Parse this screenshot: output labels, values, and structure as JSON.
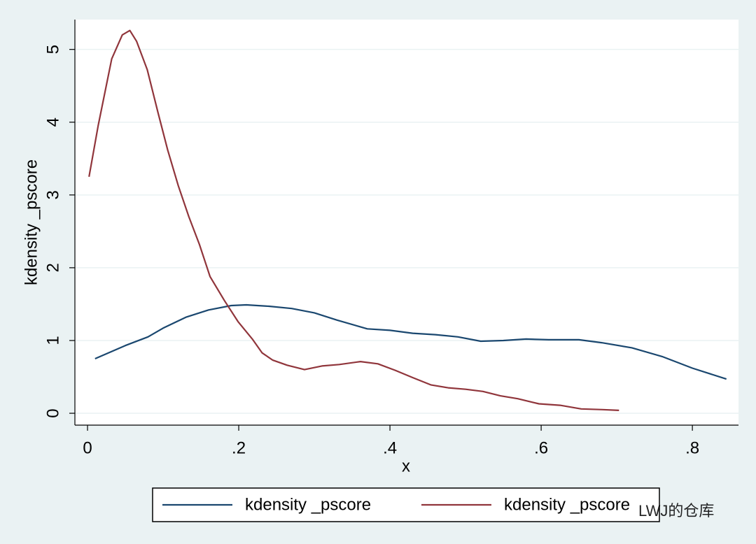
{
  "chart_data": {
    "type": "line",
    "xlabel": "x",
    "ylabel": "kdensity _pscore",
    "xlim": [
      -0.0167,
      0.861
    ],
    "ylim": [
      -0.163,
      5.41
    ],
    "xticks": [
      0,
      {
        "value": 0.2,
        "label": ".2"
      },
      {
        "value": 0.4,
        "label": ".4"
      },
      {
        "value": 0.6,
        "label": ".6"
      },
      {
        "value": 0.8,
        "label": ".8"
      }
    ],
    "yticks": [
      0,
      1,
      2,
      3,
      4,
      5
    ],
    "grid": true,
    "legend": "bottom",
    "watermark": "LWJ的仓库",
    "series": [
      {
        "name": "kdensity _pscore",
        "color": "#1a476f",
        "x": [
          0.01,
          0.05,
          0.08,
          0.1,
          0.13,
          0.16,
          0.19,
          0.21,
          0.24,
          0.27,
          0.3,
          0.33,
          0.36,
          0.37,
          0.4,
          0.43,
          0.46,
          0.49,
          0.52,
          0.55,
          0.58,
          0.61,
          0.65,
          0.68,
          0.72,
          0.76,
          0.8,
          0.845
        ],
        "values": [
          0.75,
          0.93,
          1.05,
          1.17,
          1.32,
          1.42,
          1.48,
          1.49,
          1.47,
          1.44,
          1.38,
          1.28,
          1.19,
          1.16,
          1.14,
          1.1,
          1.08,
          1.05,
          0.99,
          1.0,
          1.02,
          1.01,
          1.01,
          0.97,
          0.9,
          0.78,
          0.62,
          0.47
        ]
      },
      {
        "name": "kdensity _pscore",
        "color": "#90353b",
        "x": [
          0.002,
          0.014,
          0.032,
          0.046,
          0.056,
          0.065,
          0.079,
          0.093,
          0.106,
          0.12,
          0.134,
          0.148,
          0.162,
          0.181,
          0.199,
          0.218,
          0.231,
          0.245,
          0.264,
          0.287,
          0.31,
          0.333,
          0.361,
          0.384,
          0.407,
          0.43,
          0.454,
          0.477,
          0.5,
          0.523,
          0.546,
          0.569,
          0.597,
          0.625,
          0.653,
          0.681,
          0.703
        ],
        "values": [
          3.25,
          3.95,
          4.87,
          5.2,
          5.26,
          5.11,
          4.72,
          4.14,
          3.62,
          3.13,
          2.7,
          2.32,
          1.88,
          1.55,
          1.26,
          1.02,
          0.83,
          0.73,
          0.66,
          0.6,
          0.65,
          0.67,
          0.71,
          0.68,
          0.59,
          0.49,
          0.39,
          0.35,
          0.33,
          0.3,
          0.24,
          0.2,
          0.13,
          0.11,
          0.06,
          0.05,
          0.04
        ]
      }
    ]
  }
}
